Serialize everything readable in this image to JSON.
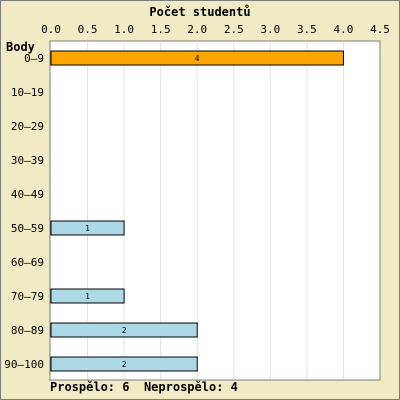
{
  "chart_data": {
    "type": "bar",
    "orientation": "horizontal",
    "title": "Počet studentů",
    "ylabel": "Body",
    "xlabel": "",
    "categories": [
      "0–9",
      "10–19",
      "20–29",
      "30–39",
      "40–49",
      "50–59",
      "60–69",
      "70–79",
      "80–89",
      "90–100"
    ],
    "values": [
      4,
      0,
      0,
      0,
      0,
      1,
      0,
      1,
      2,
      2
    ],
    "data_labels": [
      "4",
      "",
      "",
      "",
      "",
      "1",
      "",
      "1",
      "2",
      "2"
    ],
    "xlim": [
      0,
      4.5
    ],
    "xticks": [
      "0.0",
      "0.5",
      "1.0",
      "1.5",
      "2.0",
      "2.5",
      "3.0",
      "3.5",
      "4.0",
      "4.5"
    ],
    "grid": true,
    "bar_colors": [
      "#ffa500",
      "#add8e6",
      "#add8e6",
      "#add8e6",
      "#add8e6",
      "#add8e6",
      "#add8e6",
      "#add8e6",
      "#add8e6",
      "#add8e6"
    ]
  },
  "summary": {
    "passed_label": "Prospělo:",
    "passed_value": "6",
    "failed_label": "Neprospělo:",
    "failed_value": "4"
  }
}
